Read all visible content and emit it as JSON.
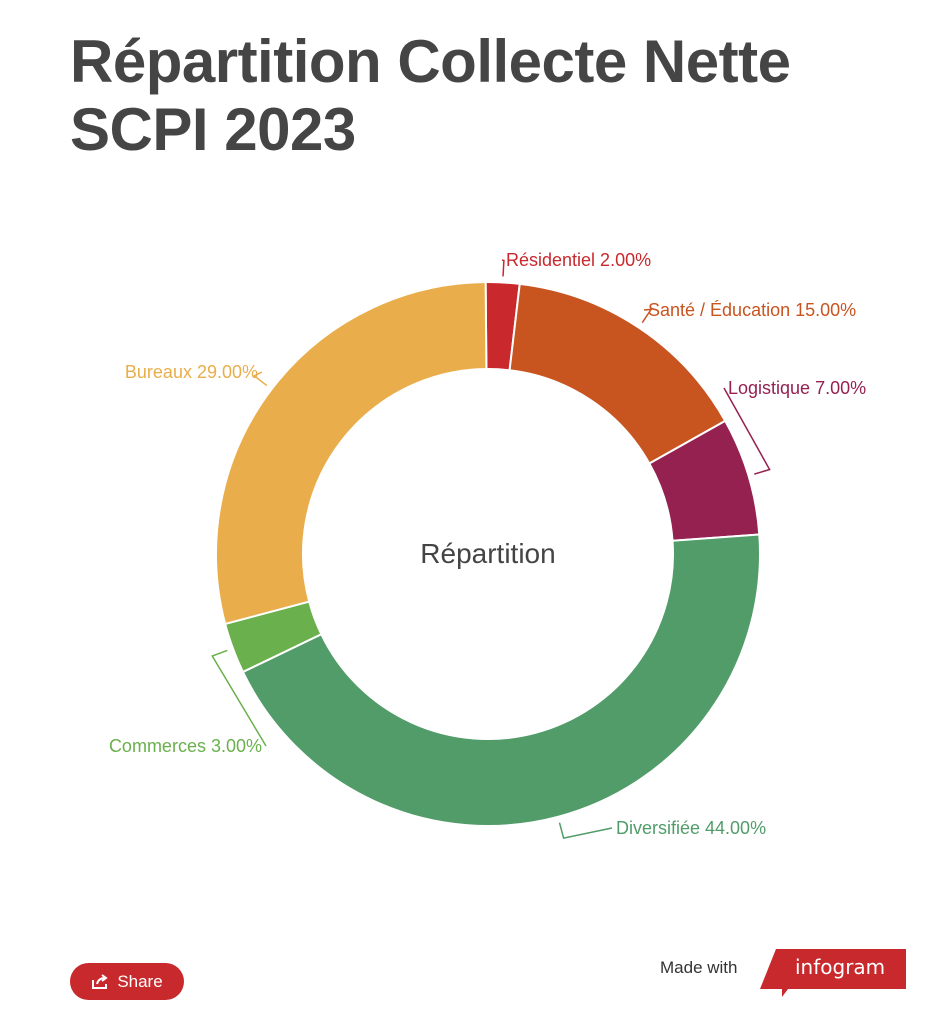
{
  "title_lines": [
    "Répartition Collecte Nette",
    "SCPI 2023"
  ],
  "chart_data": {
    "type": "pie",
    "center_label": "Répartition",
    "slices": [
      {
        "label": "Résidentiel",
        "value": 2.0,
        "display": "Résidentiel 2.00%",
        "color": "#c9282d"
      },
      {
        "label": "Santé / Éducation",
        "value": 15.0,
        "display": "Santé / Éducation 15.00%",
        "color": "#c85420"
      },
      {
        "label": "Logistique",
        "value": 7.0,
        "display": "Logistique 7.00%",
        "color": "#952150"
      },
      {
        "label": "Diversifiée",
        "value": 44.0,
        "display": "Diversifiée 44.00%",
        "color": "#519c69"
      },
      {
        "label": "Commerces",
        "value": 3.0,
        "display": "Commerces 3.00%",
        "color": "#6ab04c"
      },
      {
        "label": "Bureaux",
        "value": 29.0,
        "display": "Bureaux 29.00%",
        "color": "#e9ae4b"
      }
    ]
  },
  "footer": {
    "share_label": "Share",
    "made_with": "Made with",
    "brand": "infogram",
    "brand_color": "#c8292d"
  }
}
